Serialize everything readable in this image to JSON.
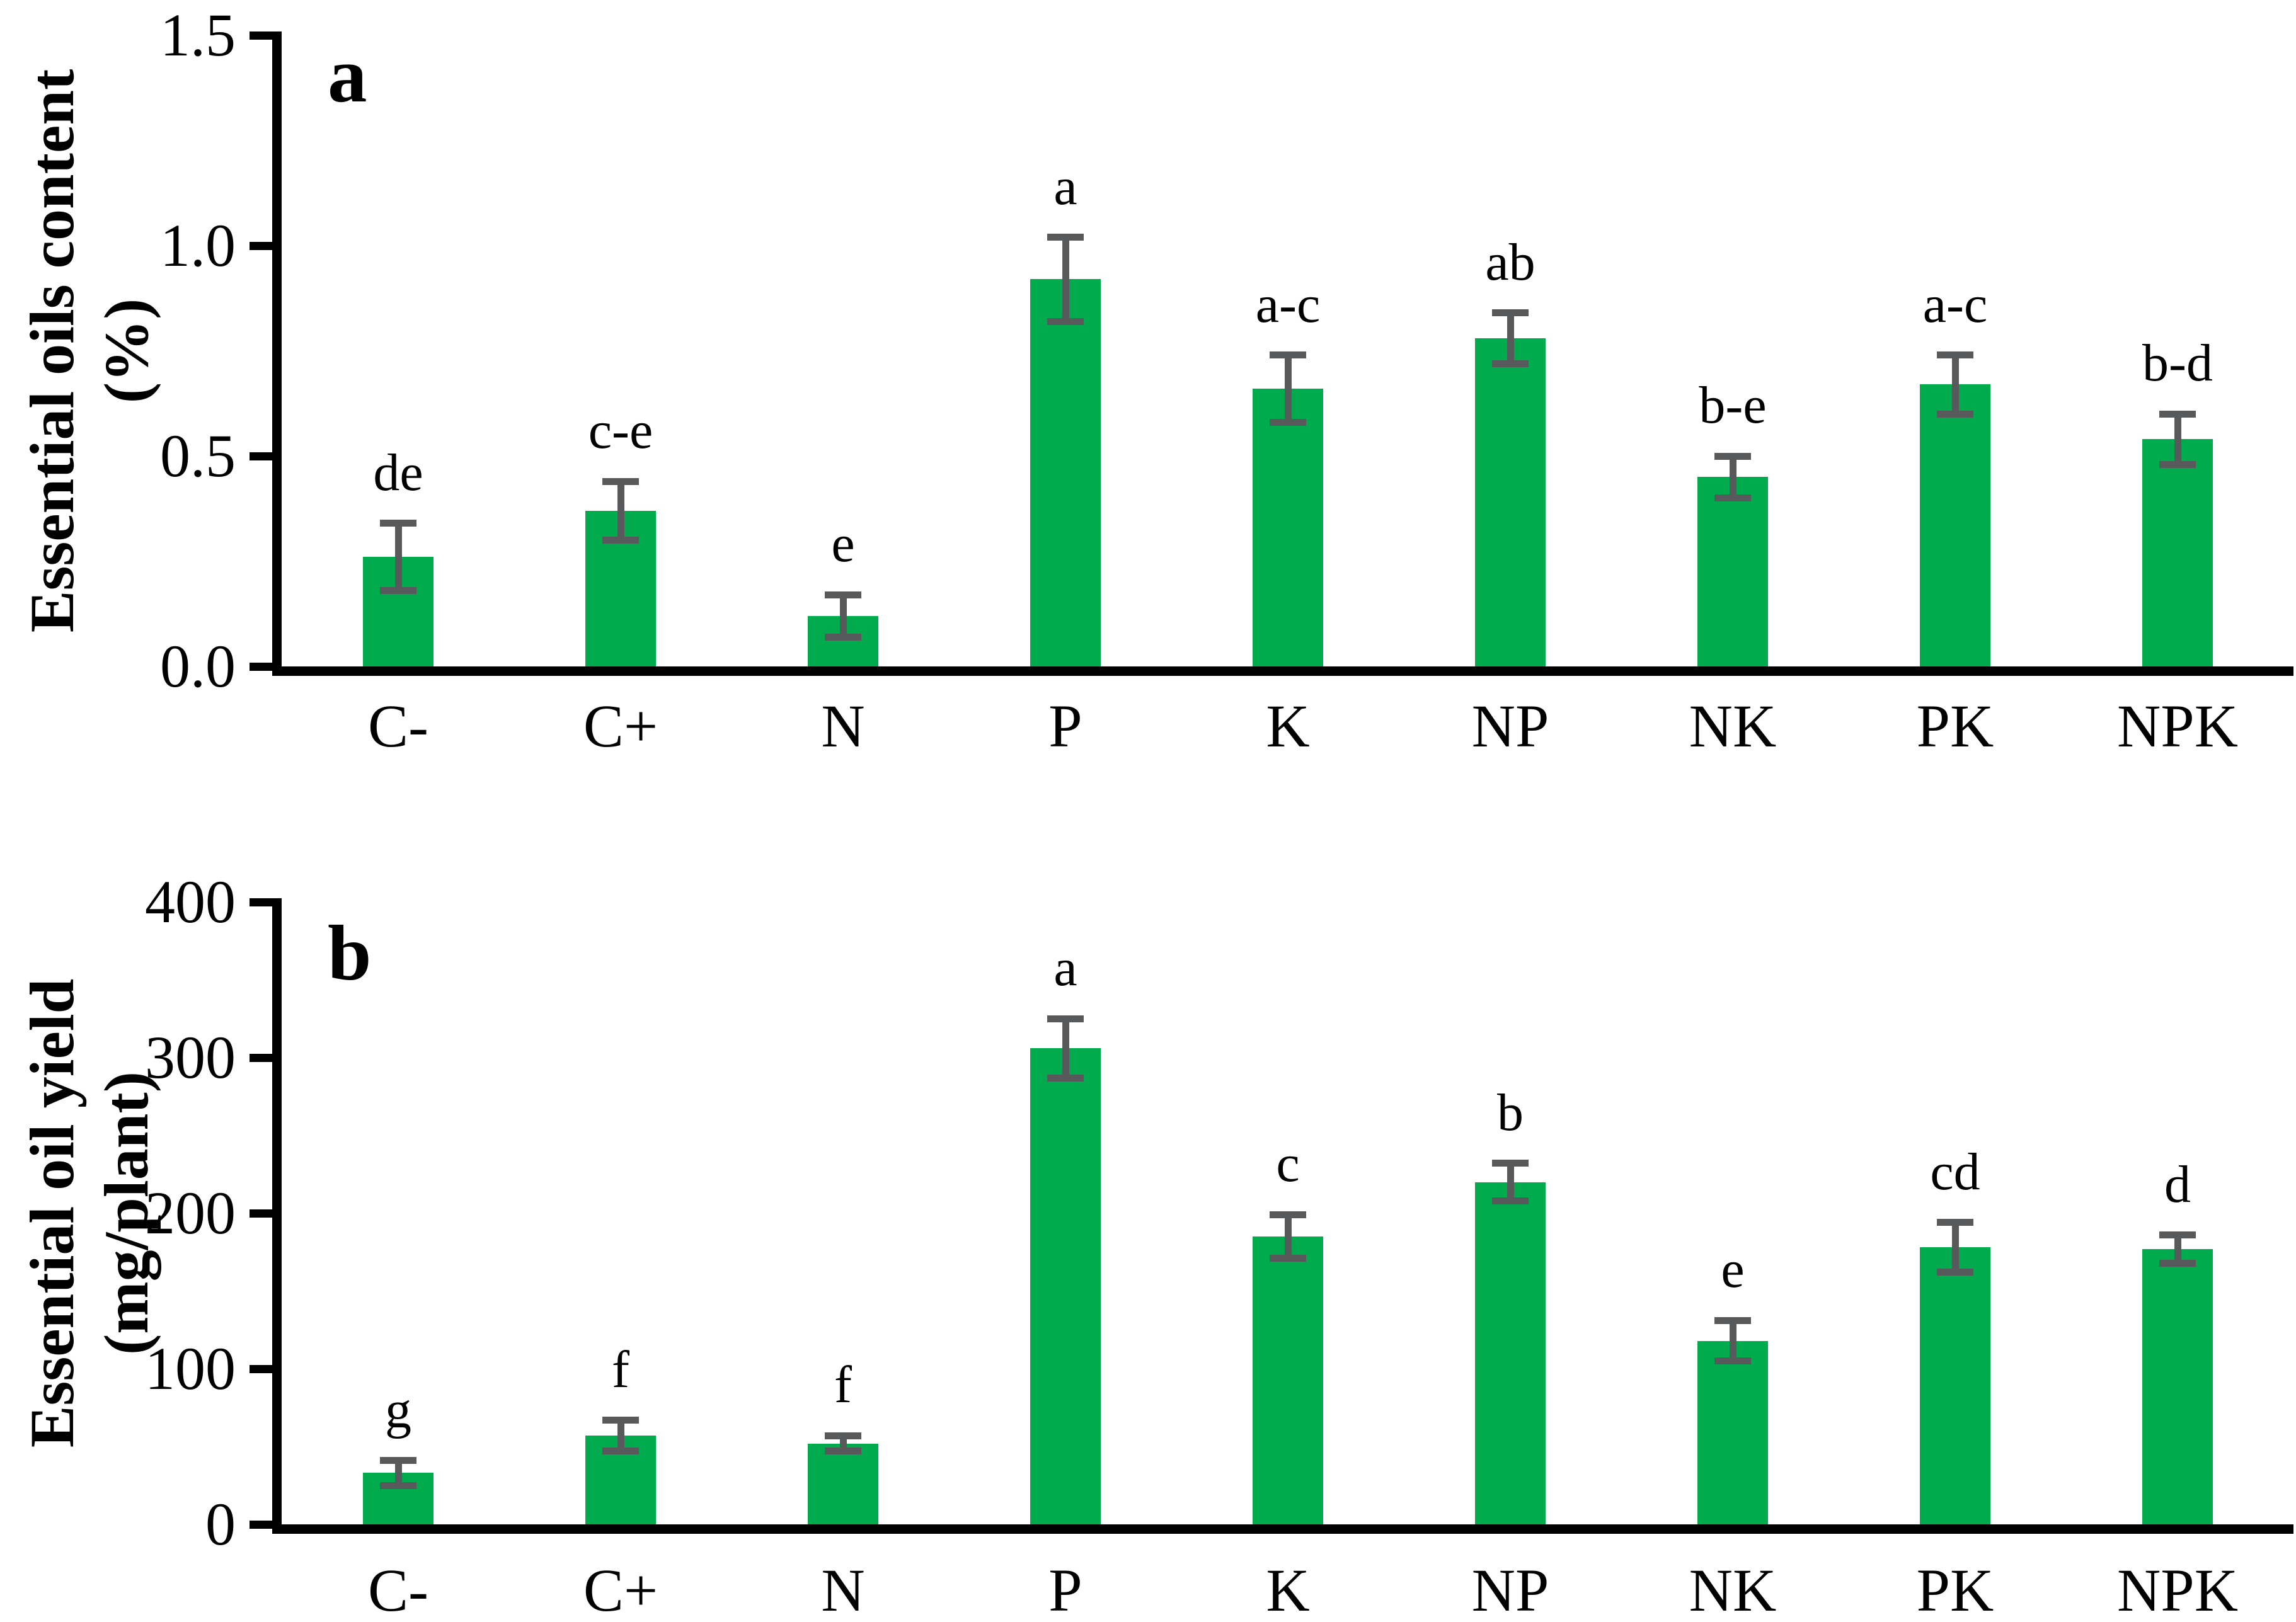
{
  "figure_title": "",
  "colors": {
    "bar": "#00AB4E",
    "error_bar": "#58595B",
    "axis": "#000000",
    "background": "#ffffff"
  },
  "chart_data": [
    {
      "type": "bar",
      "panel_label": "a",
      "title": "",
      "xlabel": "",
      "ylabel": "Essential oils content (%)",
      "ylabel_lines": [
        "Essential oils content",
        "(%)"
      ],
      "categories": [
        "C-",
        "C+",
        "N",
        "P",
        "K",
        "NP",
        "NK",
        "PK",
        "NPK"
      ],
      "values": [
        0.26,
        0.37,
        0.12,
        0.92,
        0.66,
        0.78,
        0.45,
        0.67,
        0.54
      ],
      "errors": [
        0.08,
        0.07,
        0.05,
        0.1,
        0.08,
        0.06,
        0.05,
        0.07,
        0.06
      ],
      "sig_letters": [
        "de",
        "c-e",
        "e",
        "a",
        "a-c",
        "ab",
        "b-e",
        "a-c",
        "b-d"
      ],
      "ylim": [
        0,
        1.5
      ],
      "yticks": [
        0,
        0.5,
        1.0,
        1.5
      ],
      "ytick_labels": [
        "0.0",
        "0.5",
        "1.0",
        "1.5"
      ],
      "grid": false,
      "legend": null,
      "bar_color": "#00AB4E",
      "error_color": "#58595B"
    },
    {
      "type": "bar",
      "panel_label": "b",
      "title": "",
      "xlabel": "",
      "ylabel": "Essential oil yield (mg/plant)",
      "ylabel_lines": [
        "Essential oil yield",
        "(mg/plant)"
      ],
      "categories": [
        "C-",
        "C+",
        "N",
        "P",
        "K",
        "NP",
        "NK",
        "PK",
        "NPK"
      ],
      "values": [
        33,
        57,
        52,
        306,
        185,
        220,
        118,
        178,
        177
      ],
      "errors": [
        8,
        10,
        5,
        19,
        14,
        12,
        13,
        16,
        9
      ],
      "sig_letters": [
        "g",
        "f",
        "f",
        "a",
        "c",
        "b",
        "e",
        "cd",
        "d"
      ],
      "ylim": [
        0,
        400
      ],
      "yticks": [
        0,
        100,
        200,
        300,
        400
      ],
      "ytick_labels": [
        "0",
        "100",
        "200",
        "300",
        "400"
      ],
      "grid": false,
      "legend": null,
      "bar_color": "#00AB4E",
      "error_color": "#58595B"
    }
  ]
}
